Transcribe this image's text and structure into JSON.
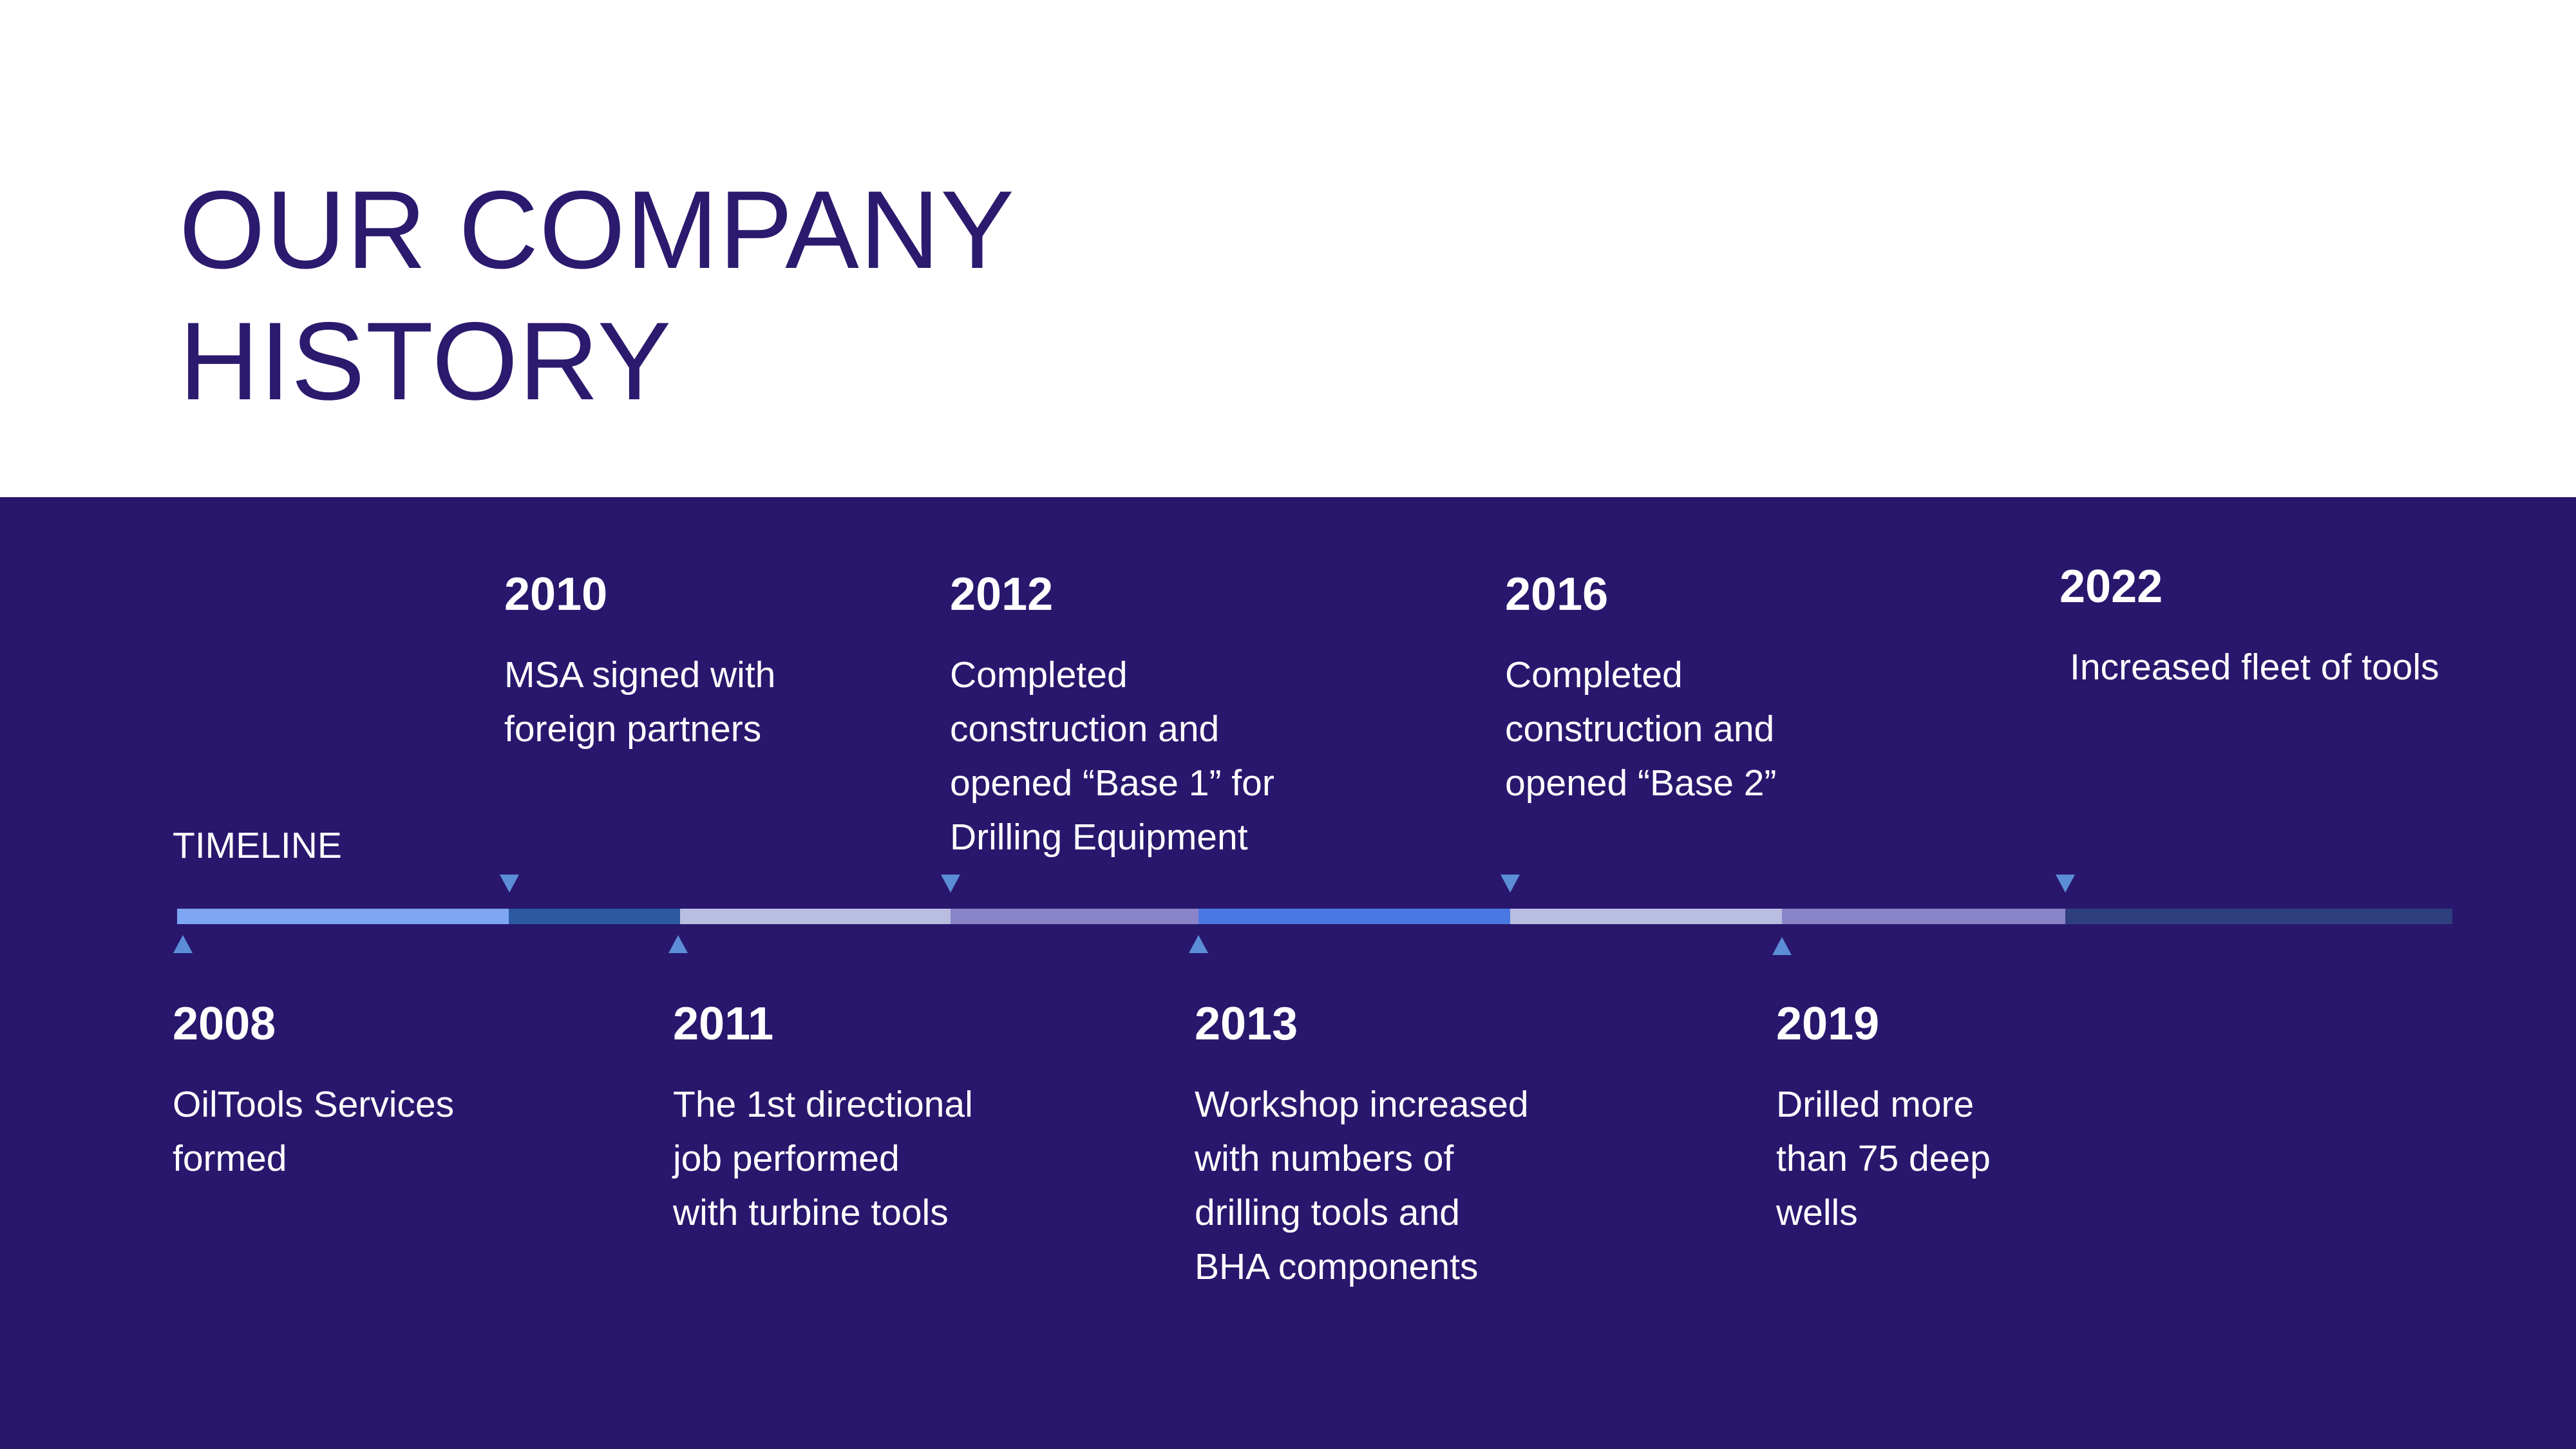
{
  "slide": {
    "title_line1": "OUR COMPANY",
    "title_line2": "HISTORY",
    "timeline_label": "TIMELINE"
  },
  "events": [
    {
      "year": "2008",
      "description": "OilTools Services\nformed"
    },
    {
      "year": "2010",
      "description": "MSA signed with\nforeign partners"
    },
    {
      "year": "2011",
      "description": "The 1st directional\njob performed\nwith turbine tools"
    },
    {
      "year": "2012",
      "description": "Completed\nconstruction and\nopened “Base 1” for\nDrilling Equipment"
    },
    {
      "year": "2013",
      "description": "Workshop increased\nwith numbers of\ndrilling tools and\nBHA components"
    },
    {
      "year": "2016",
      "description": "Completed\nconstruction and\nopened “Base 2”"
    },
    {
      "year": "2019",
      "description": "Drilled more\nthan 75 deep\nwells"
    },
    {
      "year": "2022",
      "description": "Increased fleet of tools"
    }
  ],
  "colors": {
    "title": "#2b1a6e",
    "band": "#28176d",
    "marker": "#5b8ed6",
    "segments": [
      "#7ea6f2",
      "#2c5aa0",
      "#b9bde0",
      "#8a84c9",
      "#4a78e3",
      "#b9bde0",
      "#8a84c9",
      "#2e3f7e"
    ]
  }
}
